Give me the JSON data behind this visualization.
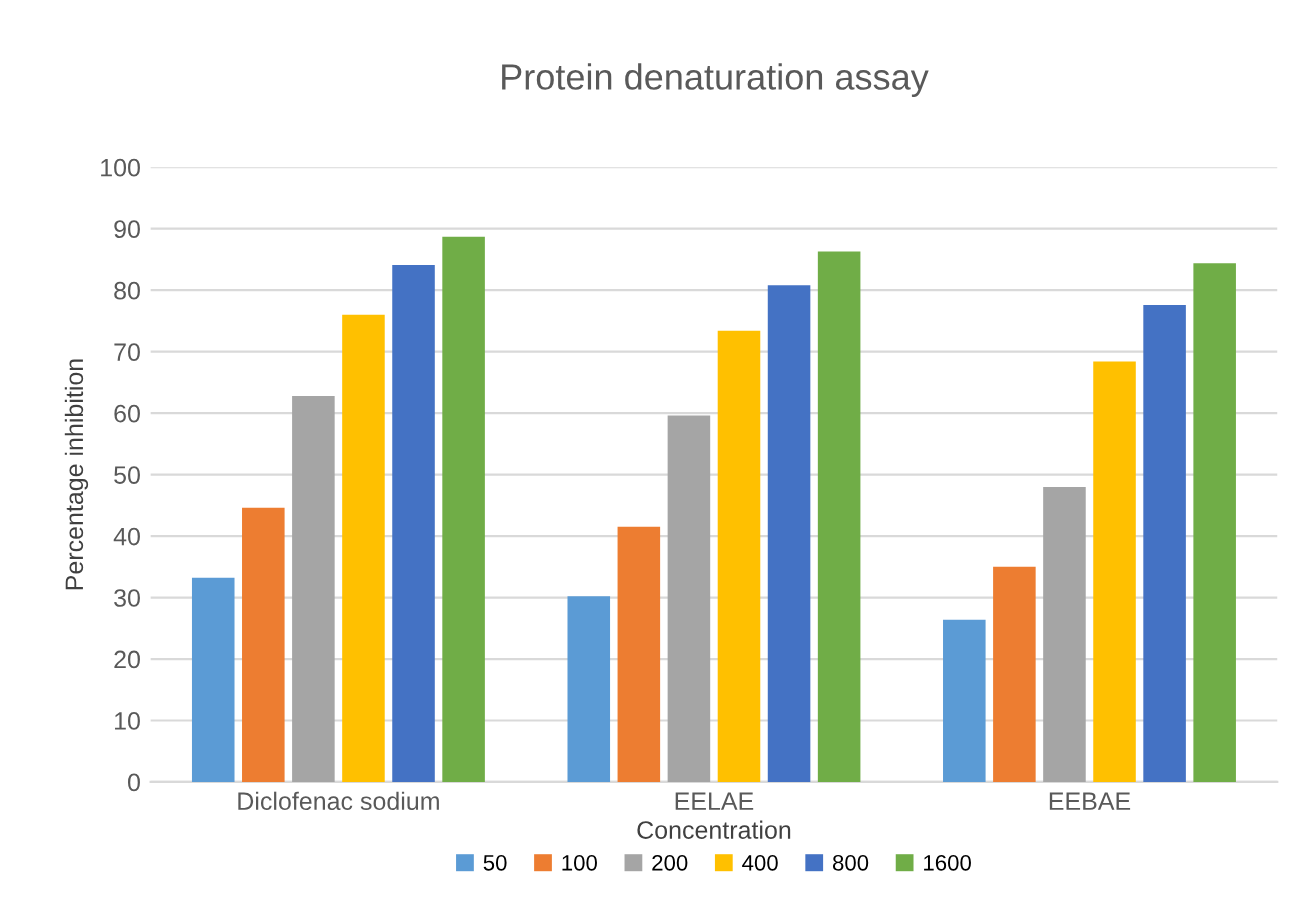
{
  "chart_data": {
    "type": "bar",
    "title": "Protein denaturation assay",
    "xlabel": "Concentration",
    "ylabel": "Percentage inhibition",
    "categories": [
      "Diclofenac sodium",
      "EELAE",
      "EEBAE"
    ],
    "series": [
      {
        "name": "50",
        "color": "#5b9bd5",
        "values": [
          33.2,
          30.2,
          26.4
        ]
      },
      {
        "name": "100",
        "color": "#ed7d31",
        "values": [
          44.6,
          41.5,
          35.0
        ]
      },
      {
        "name": "200",
        "color": "#a5a5a5",
        "values": [
          62.8,
          59.6,
          48.0
        ]
      },
      {
        "name": "400",
        "color": "#ffc000",
        "values": [
          76.0,
          73.4,
          68.4
        ]
      },
      {
        "name": "800",
        "color": "#4472c4",
        "values": [
          84.1,
          80.8,
          77.6
        ]
      },
      {
        "name": "1600",
        "color": "#70ad47",
        "values": [
          88.7,
          86.3,
          84.4
        ]
      }
    ],
    "ylim": [
      0,
      100
    ],
    "yticks": [
      0,
      10,
      20,
      30,
      40,
      50,
      60,
      70,
      80,
      90,
      100
    ],
    "grid": "y",
    "legend": "bottom"
  }
}
